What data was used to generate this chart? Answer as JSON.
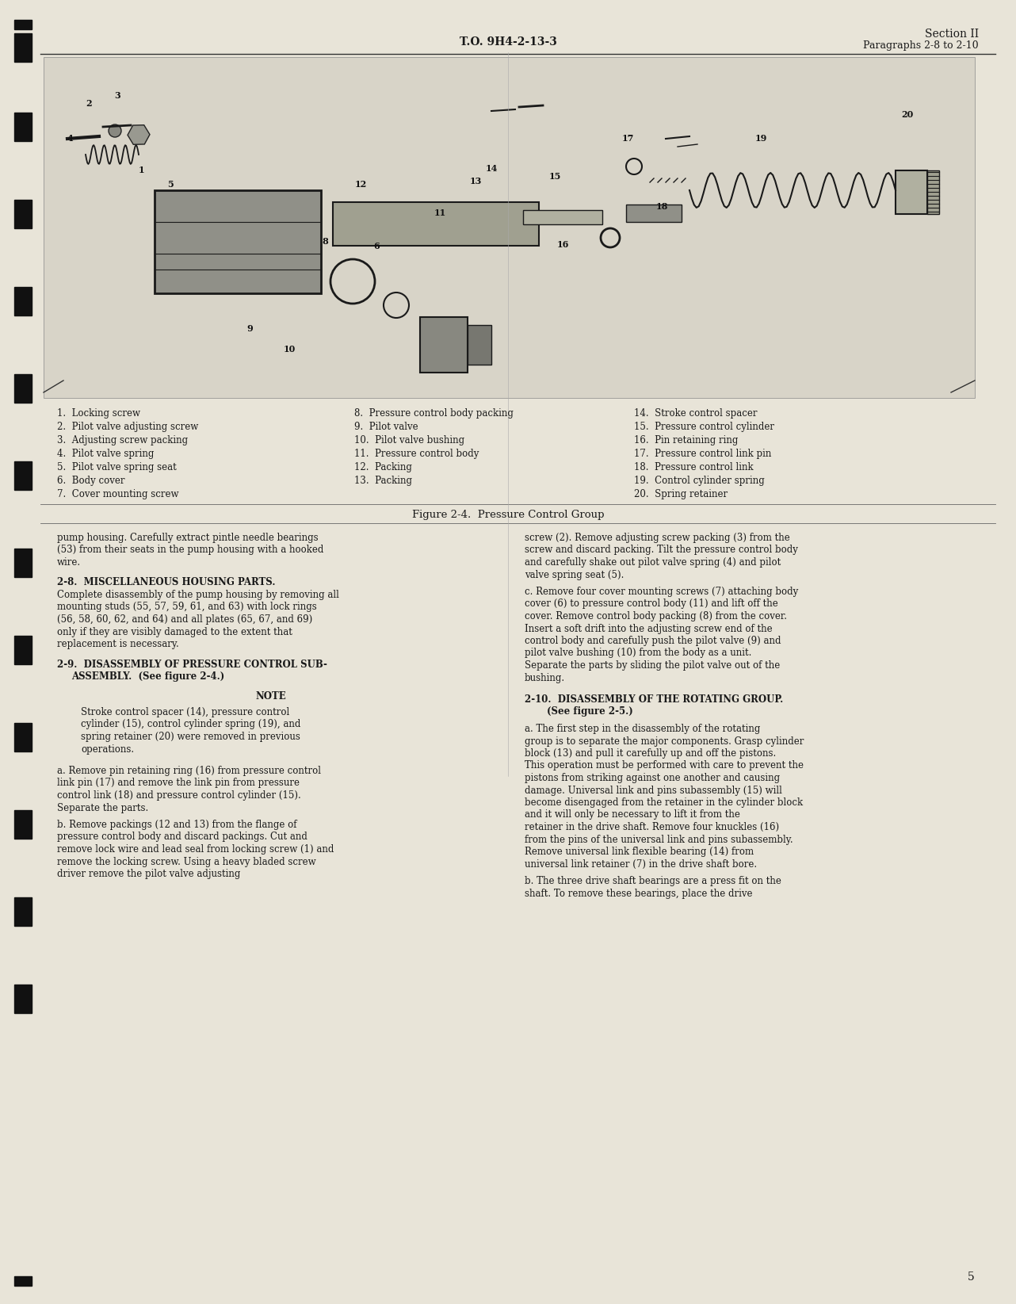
{
  "page_color": "#e8e4d8",
  "text_color": "#1a1a1a",
  "header_center": "T.O. 9H4-2-13-3",
  "header_right_line1": "Section II",
  "header_right_line2": "Paragraphs 2-8 to 2-10",
  "figure_caption": "Figure 2-4.  Pressure Control Group",
  "page_number": "5",
  "parts_list_col1": [
    "1.  Locking screw",
    "2.  Pilot valve adjusting screw",
    "3.  Adjusting screw packing",
    "4.  Pilot valve spring",
    "5.  Pilot valve spring seat",
    "6.  Body cover",
    "7.  Cover mounting screw"
  ],
  "parts_list_col2": [
    "8.  Pressure control body packing",
    "9.  Pilot valve",
    "10.  Pilot valve bushing",
    "11.  Pressure control body",
    "12.  Packing",
    "13.  Packing"
  ],
  "parts_list_col3": [
    "14.  Stroke control spacer",
    "15.  Pressure control cylinder",
    "16.  Pin retaining ring",
    "17.  Pressure control link pin",
    "18.  Pressure control link",
    "19.  Control cylinder spring",
    "20.  Spring retainer"
  ],
  "section_2_8_title": "2-8.  MISCELLANEOUS HOUSING PARTS.",
  "section_2_8_text": "Complete disassembly of the pump housing by removing all mounting studs (55, 57, 59, 61, and 63) with lock rings (56, 58, 60, 62, and 64) and all plates (65, 67, and 69) only if they are visibly damaged to the extent that replacement is necessary.",
  "section_2_9_line1": "2-9.  DISASSEMBLY OF PRESSURE CONTROL SUB-",
  "section_2_9_line2": "ASSEMBLY.  (See figure 2-4.)",
  "note_title": "NOTE",
  "note_text": "Stroke control spacer (14), pressure control cylinder (15), control cylinder spring (19), and spring retainer (20) were removed in previous operations.",
  "para_a_left": "a.  Remove pin retaining ring (16) from pressure control link pin (17) and remove the link pin from pressure control link (18) and pressure control cylinder (15).  Separate the parts.",
  "para_b_left": "b.  Remove packings (12 and 13) from the flange of pressure control body and discard packings.  Cut and remove lock wire and lead seal from locking screw (1) and remove the locking screw.  Using a heavy bladed screw driver remove the pilot valve adjusting",
  "para_right_top": "screw (2).  Remove adjusting screw packing (3) from the screw and discard packing.  Tilt the pressure control body and carefully shake out pilot valve spring (4) and pilot valve spring seat (5).",
  "para_c_right": "c.  Remove four cover mounting screws (7) attaching body cover (6) to pressure control body (11) and lift off the cover.  Remove control body packing (8) from the cover.  Insert a soft drift into the adjusting screw end of the control body and carefully push the pilot valve (9) and pilot valve bushing (10) from the body as a unit.  Separate the parts by sliding the pilot valve out of the bushing.",
  "section_2_10_line1": "2-10.  DISASSEMBLY OF THE ROTATING GROUP.",
  "section_2_10_line2": "(See figure 2-5.)",
  "para_a_right": "a.  The first step in the disassembly of the rotating group is to separate the major components.  Grasp cylinder block (13) and pull it carefully up and off the pistons.  This operation must be performed with care to prevent the pistons from striking against one another and causing damage.  Universal link and pins subassembly (15) will become disengaged from the retainer in the cylinder block and it will only be necessary to lift it from the retainer in the drive shaft.  Remove four knuckles (16) from the pins of the universal link and pins subassembly.  Remove universal link flexible bearing (14) from universal link retainer (7) in the drive shaft bore.",
  "para_b_right": "b.  The three drive shaft bearings are a press fit on the shaft.  To remove these bearings, place the drive",
  "intro_left_text": "pump housing.  Carefully extract pintle needle bearings (53) from their seats in the pump housing with a hooked wire.",
  "binding_bars_y": [
    60,
    160,
    270,
    380,
    490,
    600,
    710,
    820,
    930,
    1040,
    1150,
    1260
  ]
}
